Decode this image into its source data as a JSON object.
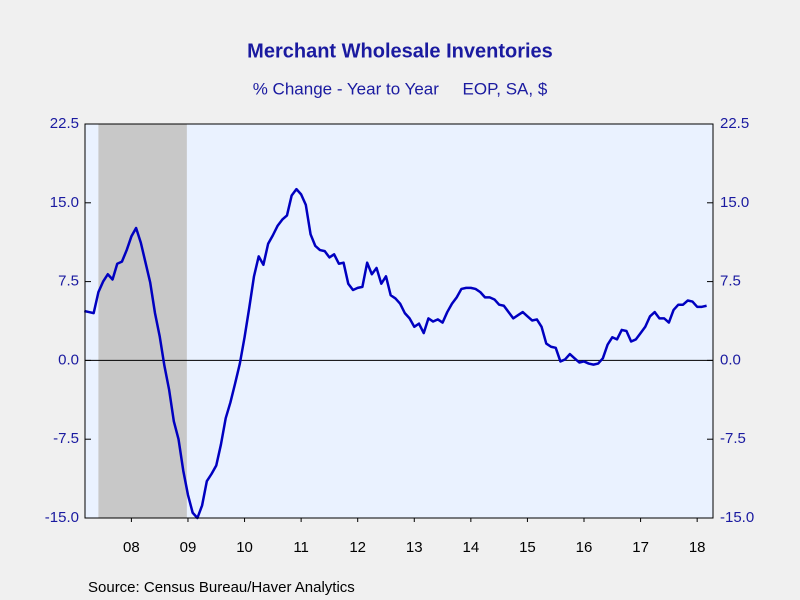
{
  "chart_data": {
    "type": "line",
    "title": "Merchant Wholesale Inventories",
    "subtitle": "% Change - Year to Year     EOP, SA, $",
    "source": "Source:  Census Bureau/Haver Analytics",
    "xlim": [
      2007.68,
      2018.78
    ],
    "xticks": [
      {
        "value": 2008.5,
        "label": "08"
      },
      {
        "value": 2009.5,
        "label": "09"
      },
      {
        "value": 2010.5,
        "label": "10"
      },
      {
        "value": 2011.5,
        "label": "11"
      },
      {
        "value": 2012.5,
        "label": "12"
      },
      {
        "value": 2013.5,
        "label": "13"
      },
      {
        "value": 2014.5,
        "label": "14"
      },
      {
        "value": 2015.5,
        "label": "15"
      },
      {
        "value": 2016.5,
        "label": "16"
      },
      {
        "value": 2017.5,
        "label": "17"
      },
      {
        "value": 2018.5,
        "label": "18"
      }
    ],
    "ylim": [
      -15,
      22.5
    ],
    "yticks": [
      {
        "value": -15,
        "label": "-15.0"
      },
      -7.5,
      {
        "value": 0,
        "label": "0.0"
      },
      7.5,
      {
        "value": 15,
        "label": "15.0"
      },
      22.5
    ],
    "y2lim": [
      -15,
      22.5
    ],
    "y2ticks": [
      {
        "value": -15,
        "label": "-15.0"
      },
      -7.5,
      {
        "value": 0,
        "label": "0.0"
      },
      7.5,
      {
        "value": 15,
        "label": "15.0"
      },
      22.5
    ],
    "recessions": [
      [
        2007.917,
        2009.48
      ]
    ],
    "x": [
      2007.667,
      2007.75,
      2007.833,
      2007.917,
      2008.0,
      2008.083,
      2008.167,
      2008.25,
      2008.333,
      2008.417,
      2008.5,
      2008.583,
      2008.667,
      2008.75,
      2008.833,
      2008.917,
      2009.0,
      2009.083,
      2009.167,
      2009.25,
      2009.333,
      2009.417,
      2009.5,
      2009.583,
      2009.667,
      2009.75,
      2009.833,
      2009.917,
      2010.0,
      2010.083,
      2010.167,
      2010.25,
      2010.333,
      2010.417,
      2010.5,
      2010.583,
      2010.667,
      2010.75,
      2010.833,
      2010.917,
      2011.0,
      2011.083,
      2011.167,
      2011.25,
      2011.333,
      2011.417,
      2011.5,
      2011.583,
      2011.667,
      2011.75,
      2011.833,
      2011.917,
      2012.0,
      2012.083,
      2012.167,
      2012.25,
      2012.333,
      2012.417,
      2012.5,
      2012.583,
      2012.667,
      2012.75,
      2012.833,
      2012.917,
      2013.0,
      2013.083,
      2013.167,
      2013.25,
      2013.333,
      2013.417,
      2013.5,
      2013.583,
      2013.667,
      2013.75,
      2013.833,
      2013.917,
      2014.0,
      2014.083,
      2014.167,
      2014.25,
      2014.333,
      2014.417,
      2014.5,
      2014.583,
      2014.667,
      2014.75,
      2014.833,
      2014.917,
      2015.0,
      2015.083,
      2015.167,
      2015.25,
      2015.333,
      2015.417,
      2015.5,
      2015.583,
      2015.667,
      2015.75,
      2015.833,
      2015.917,
      2016.0,
      2016.083,
      2016.167,
      2016.25,
      2016.333,
      2016.417,
      2016.5,
      2016.583,
      2016.667,
      2016.75,
      2016.833,
      2016.917,
      2017.0,
      2017.083,
      2017.167,
      2017.25,
      2017.333,
      2017.417,
      2017.5,
      2017.583,
      2017.667,
      2017.75,
      2017.833,
      2017.917,
      2018.0,
      2018.083,
      2018.167,
      2018.25,
      2018.333,
      2018.417,
      2018.5,
      2018.583,
      2018.667
    ],
    "series": [
      {
        "name": "Merchant Wholesale Inventories",
        "color": "#0000c0",
        "values": [
          4.7,
          4.6,
          4.5,
          6.5,
          7.5,
          8.2,
          7.7,
          9.2,
          9.4,
          10.5,
          11.8,
          12.6,
          11.2,
          9.3,
          7.4,
          4.5,
          2.3,
          -0.5,
          -2.8,
          -5.8,
          -7.5,
          -10.5,
          -12.8,
          -14.5,
          -15.0,
          -13.8,
          -11.5,
          -10.8,
          -10.0,
          -8.0,
          -5.5,
          -4.0,
          -2.2,
          -0.3,
          2.2,
          5.0,
          8.0,
          9.9,
          9.1,
          11.1,
          11.9,
          12.8,
          13.4,
          13.8,
          15.7,
          16.3,
          15.8,
          14.8,
          12.0,
          10.9,
          10.5,
          10.4,
          9.8,
          10.1,
          9.2,
          9.3,
          7.3,
          6.7,
          6.9,
          7.0,
          9.3,
          8.2,
          8.8,
          7.3,
          8.0,
          6.2,
          5.9,
          5.4,
          4.5,
          4.0,
          3.2,
          3.5,
          2.6,
          4.0,
          3.7,
          3.9,
          3.6,
          4.6,
          5.4,
          6.0,
          6.8,
          6.9,
          6.9,
          6.8,
          6.5,
          6.0,
          6.0,
          5.8,
          5.3,
          5.2,
          4.6,
          4.0,
          4.3,
          4.6,
          4.2,
          3.8,
          3.9,
          3.2,
          1.6,
          1.3,
          1.2,
          -0.1,
          0.1,
          0.6,
          0.2,
          -0.2,
          -0.1,
          -0.3,
          -0.4,
          -0.3,
          0.2,
          1.5,
          2.2,
          2.0,
          2.9,
          2.8,
          1.8,
          2.0,
          2.6,
          3.2,
          4.2,
          4.6,
          4.0,
          4.0,
          3.6,
          4.8,
          5.3,
          5.3,
          5.7,
          5.6,
          5.1,
          5.1,
          5.2
        ]
      }
    ]
  }
}
